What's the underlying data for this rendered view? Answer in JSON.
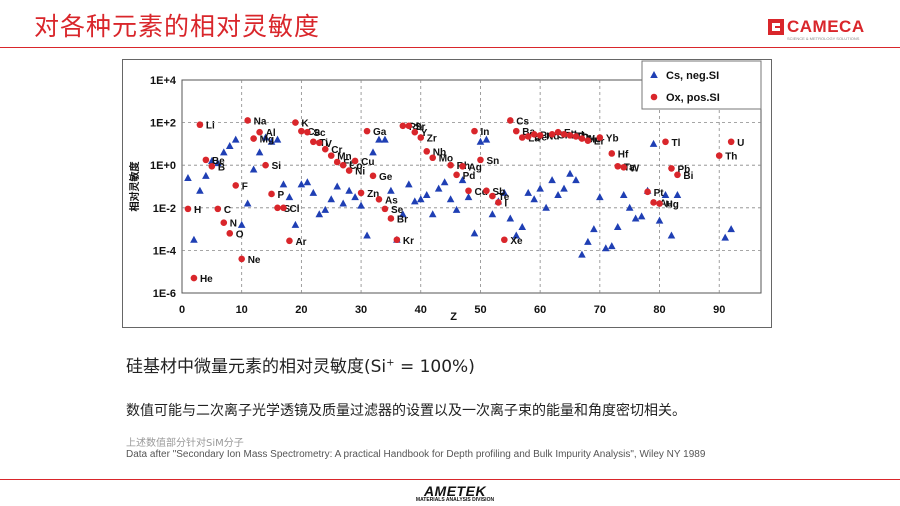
{
  "slide": {
    "title": "对各种元素的相对灵敏度",
    "caption_main": "硅基材中微量元素的相对灵敏度(Si",
    "caption_sup": "+",
    "caption_tail": " = 100%)",
    "description": "数值可能与二次离子光学透镜及质量过滤器的设置以及一次离子束的能量和角度密切相关。",
    "note_cn": "上述数值部分针对SiM分子",
    "note_source": "Data after \"Secondary Ion Mass Spectrometry: A practical Handbook for Depth profiling and Bulk Impurity Analysis\", Wiley NY 1989",
    "accent_color": "#d9262b"
  },
  "logo": {
    "text": "CAMECA",
    "tagline": "SCIENCE & METROLOGY SOLUTIONS",
    "icon": "cameca-logo-mark"
  },
  "footer": {
    "brand": "AMETEK",
    "division": "MATERIALS ANALYSIS DIVISION"
  },
  "chart_data": {
    "type": "scatter",
    "xlabel": "Z",
    "ylabel": "相对灵敏度",
    "xlim": [
      0,
      97
    ],
    "ylim_log10": [
      -6,
      4
    ],
    "x_ticks": [
      0,
      10,
      20,
      30,
      40,
      50,
      60,
      70,
      80,
      90
    ],
    "y_tick_labels": [
      "1E+4",
      "1E+2",
      "1E+0",
      "1E-2",
      "1E-4",
      "1E-6"
    ],
    "grid": true,
    "legend_position": "top-right",
    "series": [
      {
        "name": "Cs, neg.SI",
        "color": "#1f3fb4",
        "marker": "triangle",
        "points": [
          [
            1,
            -0.6
          ],
          [
            2,
            -3.5
          ],
          [
            3,
            -1.2
          ],
          [
            4,
            -0.5
          ],
          [
            5,
            0.2
          ],
          [
            6,
            0.1
          ],
          [
            7,
            0.6
          ],
          [
            8,
            0.9
          ],
          [
            9,
            1.2
          ],
          [
            10,
            -2.8
          ],
          [
            11,
            -1.8
          ],
          [
            12,
            -0.2
          ],
          [
            13,
            0.6
          ],
          [
            14,
            1.3
          ],
          [
            15,
            1.1
          ],
          [
            16,
            1.2
          ],
          [
            17,
            -0.9
          ],
          [
            18,
            -1.5
          ],
          [
            19,
            -2.8
          ],
          [
            20,
            -0.9
          ],
          [
            21,
            -0.8
          ],
          [
            22,
            -1.3
          ],
          [
            23,
            -2.3
          ],
          [
            24,
            -2.1
          ],
          [
            25,
            -1.6
          ],
          [
            26,
            -1.0
          ],
          [
            27,
            -1.8
          ],
          [
            28,
            -1.2
          ],
          [
            29,
            -1.5
          ],
          [
            30,
            -1.9
          ],
          [
            31,
            -3.3
          ],
          [
            32,
            0.6
          ],
          [
            33,
            1.2
          ],
          [
            34,
            1.2
          ],
          [
            35,
            -1.2
          ],
          [
            36,
            -3.5
          ],
          [
            37,
            -2.3
          ],
          [
            38,
            -0.9
          ],
          [
            39,
            -1.7
          ],
          [
            40,
            -1.6
          ],
          [
            41,
            -1.4
          ],
          [
            42,
            -2.3
          ],
          [
            43,
            -1.1
          ],
          [
            44,
            -0.8
          ],
          [
            45,
            -1.6
          ],
          [
            46,
            -2.1
          ],
          [
            47,
            -0.7
          ],
          [
            48,
            -1.5
          ],
          [
            49,
            -3.2
          ],
          [
            50,
            1.1
          ],
          [
            51,
            1.2
          ],
          [
            52,
            -2.3
          ],
          [
            53,
            -1.7
          ],
          [
            54,
            -1.3
          ],
          [
            55,
            -2.5
          ],
          [
            56,
            -3.3
          ],
          [
            57,
            -2.9
          ],
          [
            58,
            -1.3
          ],
          [
            59,
            -1.6
          ],
          [
            60,
            -1.1
          ],
          [
            61,
            -2.0
          ],
          [
            62,
            -0.7
          ],
          [
            63,
            -1.4
          ],
          [
            64,
            -1.1
          ],
          [
            65,
            -0.4
          ],
          [
            66,
            -0.7
          ],
          [
            67,
            -4.2
          ],
          [
            68,
            -3.6
          ],
          [
            69,
            -3.0
          ],
          [
            70,
            -1.5
          ],
          [
            71,
            -3.9
          ],
          [
            72,
            -3.8
          ],
          [
            73,
            -2.9
          ],
          [
            74,
            -1.4
          ],
          [
            75,
            -2.0
          ],
          [
            76,
            -2.5
          ],
          [
            77,
            -2.4
          ],
          [
            78,
            -1.2
          ],
          [
            79,
            1.0
          ],
          [
            80,
            -2.6
          ],
          [
            81,
            -1.4
          ],
          [
            82,
            -3.3
          ],
          [
            83,
            -1.4
          ],
          [
            91,
            -3.4
          ],
          [
            92,
            -3.0
          ]
        ]
      },
      {
        "name": "Ox, pos.SI",
        "color": "#d9262b",
        "marker": "circle",
        "points": [
          {
            "z": 1,
            "y": -2.05,
            "label": "H"
          },
          {
            "z": 2,
            "y": -5.3,
            "label": "He"
          },
          {
            "z": 3,
            "y": 1.9,
            "label": "Li"
          },
          {
            "z": 4,
            "y": 0.25,
            "label": "Be"
          },
          {
            "z": 5,
            "y": -0.05,
            "label": "B"
          },
          {
            "z": 6,
            "y": -2.05,
            "label": "C"
          },
          {
            "z": 7,
            "y": -2.7,
            "label": "N"
          },
          {
            "z": 8,
            "y": -3.2,
            "label": "O"
          },
          {
            "z": 9,
            "y": -0.95,
            "label": "F"
          },
          {
            "z": 10,
            "y": -4.4,
            "label": "Ne"
          },
          {
            "z": 11,
            "y": 2.1,
            "label": "Na"
          },
          {
            "z": 12,
            "y": 1.25,
            "label": "Mg"
          },
          {
            "z": 13,
            "y": 1.55,
            "label": "Al"
          },
          {
            "z": 14,
            "y": 0.0,
            "label": "Si"
          },
          {
            "z": 15,
            "y": -1.35,
            "label": "P"
          },
          {
            "z": 16,
            "y": -2.0,
            "label": "S"
          },
          {
            "z": 17,
            "y": -2.0,
            "label": "Cl"
          },
          {
            "z": 18,
            "y": -3.55,
            "label": "Ar"
          },
          {
            "z": 19,
            "y": 2.0,
            "label": "K"
          },
          {
            "z": 20,
            "y": 1.6,
            "label": "Ca"
          },
          {
            "z": 21,
            "y": 1.55,
            "label": "Sc"
          },
          {
            "z": 22,
            "y": 1.1,
            "label": "Ti"
          },
          {
            "z": 23,
            "y": 1.05,
            "label": "V"
          },
          {
            "z": 24,
            "y": 0.75,
            "label": "Cr"
          },
          {
            "z": 25,
            "y": 0.45,
            "label": "Mn"
          },
          {
            "z": 26,
            "y": 0.15,
            "label": "Fe"
          },
          {
            "z": 27,
            "y": 0.0,
            "label": "Co"
          },
          {
            "z": 28,
            "y": -0.25,
            "label": "Ni"
          },
          {
            "z": 29,
            "y": 0.2,
            "label": "Cu"
          },
          {
            "z": 30,
            "y": -1.3,
            "label": "Zn"
          },
          {
            "z": 31,
            "y": 1.6,
            "label": "Ga"
          },
          {
            "z": 32,
            "y": -0.5,
            "label": "Ge"
          },
          {
            "z": 33,
            "y": -1.6,
            "label": "As"
          },
          {
            "z": 34,
            "y": -2.05,
            "label": "Se"
          },
          {
            "z": 35,
            "y": -2.5,
            "label": "Br"
          },
          {
            "z": 36,
            "y": -3.5,
            "label": "Kr"
          },
          {
            "z": 37,
            "y": 1.85,
            "label": "Rb"
          },
          {
            "z": 38,
            "y": 1.85,
            "label": "Sr"
          },
          {
            "z": 39,
            "y": 1.55,
            "label": "Y"
          },
          {
            "z": 40,
            "y": 1.3,
            "label": "Zr"
          },
          {
            "z": 41,
            "y": 0.65,
            "label": "Nb"
          },
          {
            "z": 42,
            "y": 0.35,
            "label": "Mo"
          },
          {
            "z": 45,
            "y": 0.0,
            "label": "Rh"
          },
          {
            "z": 46,
            "y": -0.45,
            "label": "Pd"
          },
          {
            "z": 47,
            "y": -0.05,
            "label": "Ag"
          },
          {
            "z": 48,
            "y": -1.2,
            "label": "Cd"
          },
          {
            "z": 49,
            "y": 1.6,
            "label": "In"
          },
          {
            "z": 50,
            "y": 0.25,
            "label": "Sn"
          },
          {
            "z": 51,
            "y": -1.2,
            "label": "Sb"
          },
          {
            "z": 52,
            "y": -1.45,
            "label": "Te"
          },
          {
            "z": 53,
            "y": -1.75,
            "label": "I"
          },
          {
            "z": 54,
            "y": -3.5,
            "label": "Xe"
          },
          {
            "z": 55,
            "y": 2.1,
            "label": "Cs"
          },
          {
            "z": 56,
            "y": 1.6,
            "label": "Ba"
          },
          {
            "z": 57,
            "y": 1.3,
            "label": "La"
          },
          {
            "z": 58,
            "y": 1.35,
            "label": "Ce"
          },
          {
            "z": 59,
            "y": 1.45,
            "label": "Pr"
          },
          {
            "z": 60,
            "y": 1.4,
            "label": "Nd"
          },
          {
            "z": 62,
            "y": 1.45,
            "label": "Sm"
          },
          {
            "z": 63,
            "y": 1.55,
            "label": "Eu"
          },
          {
            "z": 64,
            "y": 1.45,
            "label": "Gd"
          },
          {
            "z": 65,
            "y": 1.4,
            "label": "Tb"
          },
          {
            "z": 66,
            "y": 1.35,
            "label": "Dy"
          },
          {
            "z": 67,
            "y": 1.25,
            "label": "Ho"
          },
          {
            "z": 68,
            "y": 1.15,
            "label": "Er"
          },
          {
            "z": 70,
            "y": 1.3,
            "label": "Yb"
          },
          {
            "z": 72,
            "y": 0.55,
            "label": "Hf"
          },
          {
            "z": 73,
            "y": -0.05,
            "label": "Ta"
          },
          {
            "z": 74,
            "y": -0.1,
            "label": "W"
          },
          {
            "z": 78,
            "y": -1.25,
            "label": "Pt"
          },
          {
            "z": 79,
            "y": -1.75,
            "label": "Au"
          },
          {
            "z": 80,
            "y": -1.8,
            "label": "Hg"
          },
          {
            "z": 81,
            "y": 1.1,
            "label": "Tl"
          },
          {
            "z": 82,
            "y": -0.15,
            "label": "Pb"
          },
          {
            "z": 83,
            "y": -0.45,
            "label": "Bi"
          },
          {
            "z": 90,
            "y": 0.45,
            "label": "Th"
          },
          {
            "z": 92,
            "y": 1.1,
            "label": "U"
          }
        ]
      }
    ]
  }
}
